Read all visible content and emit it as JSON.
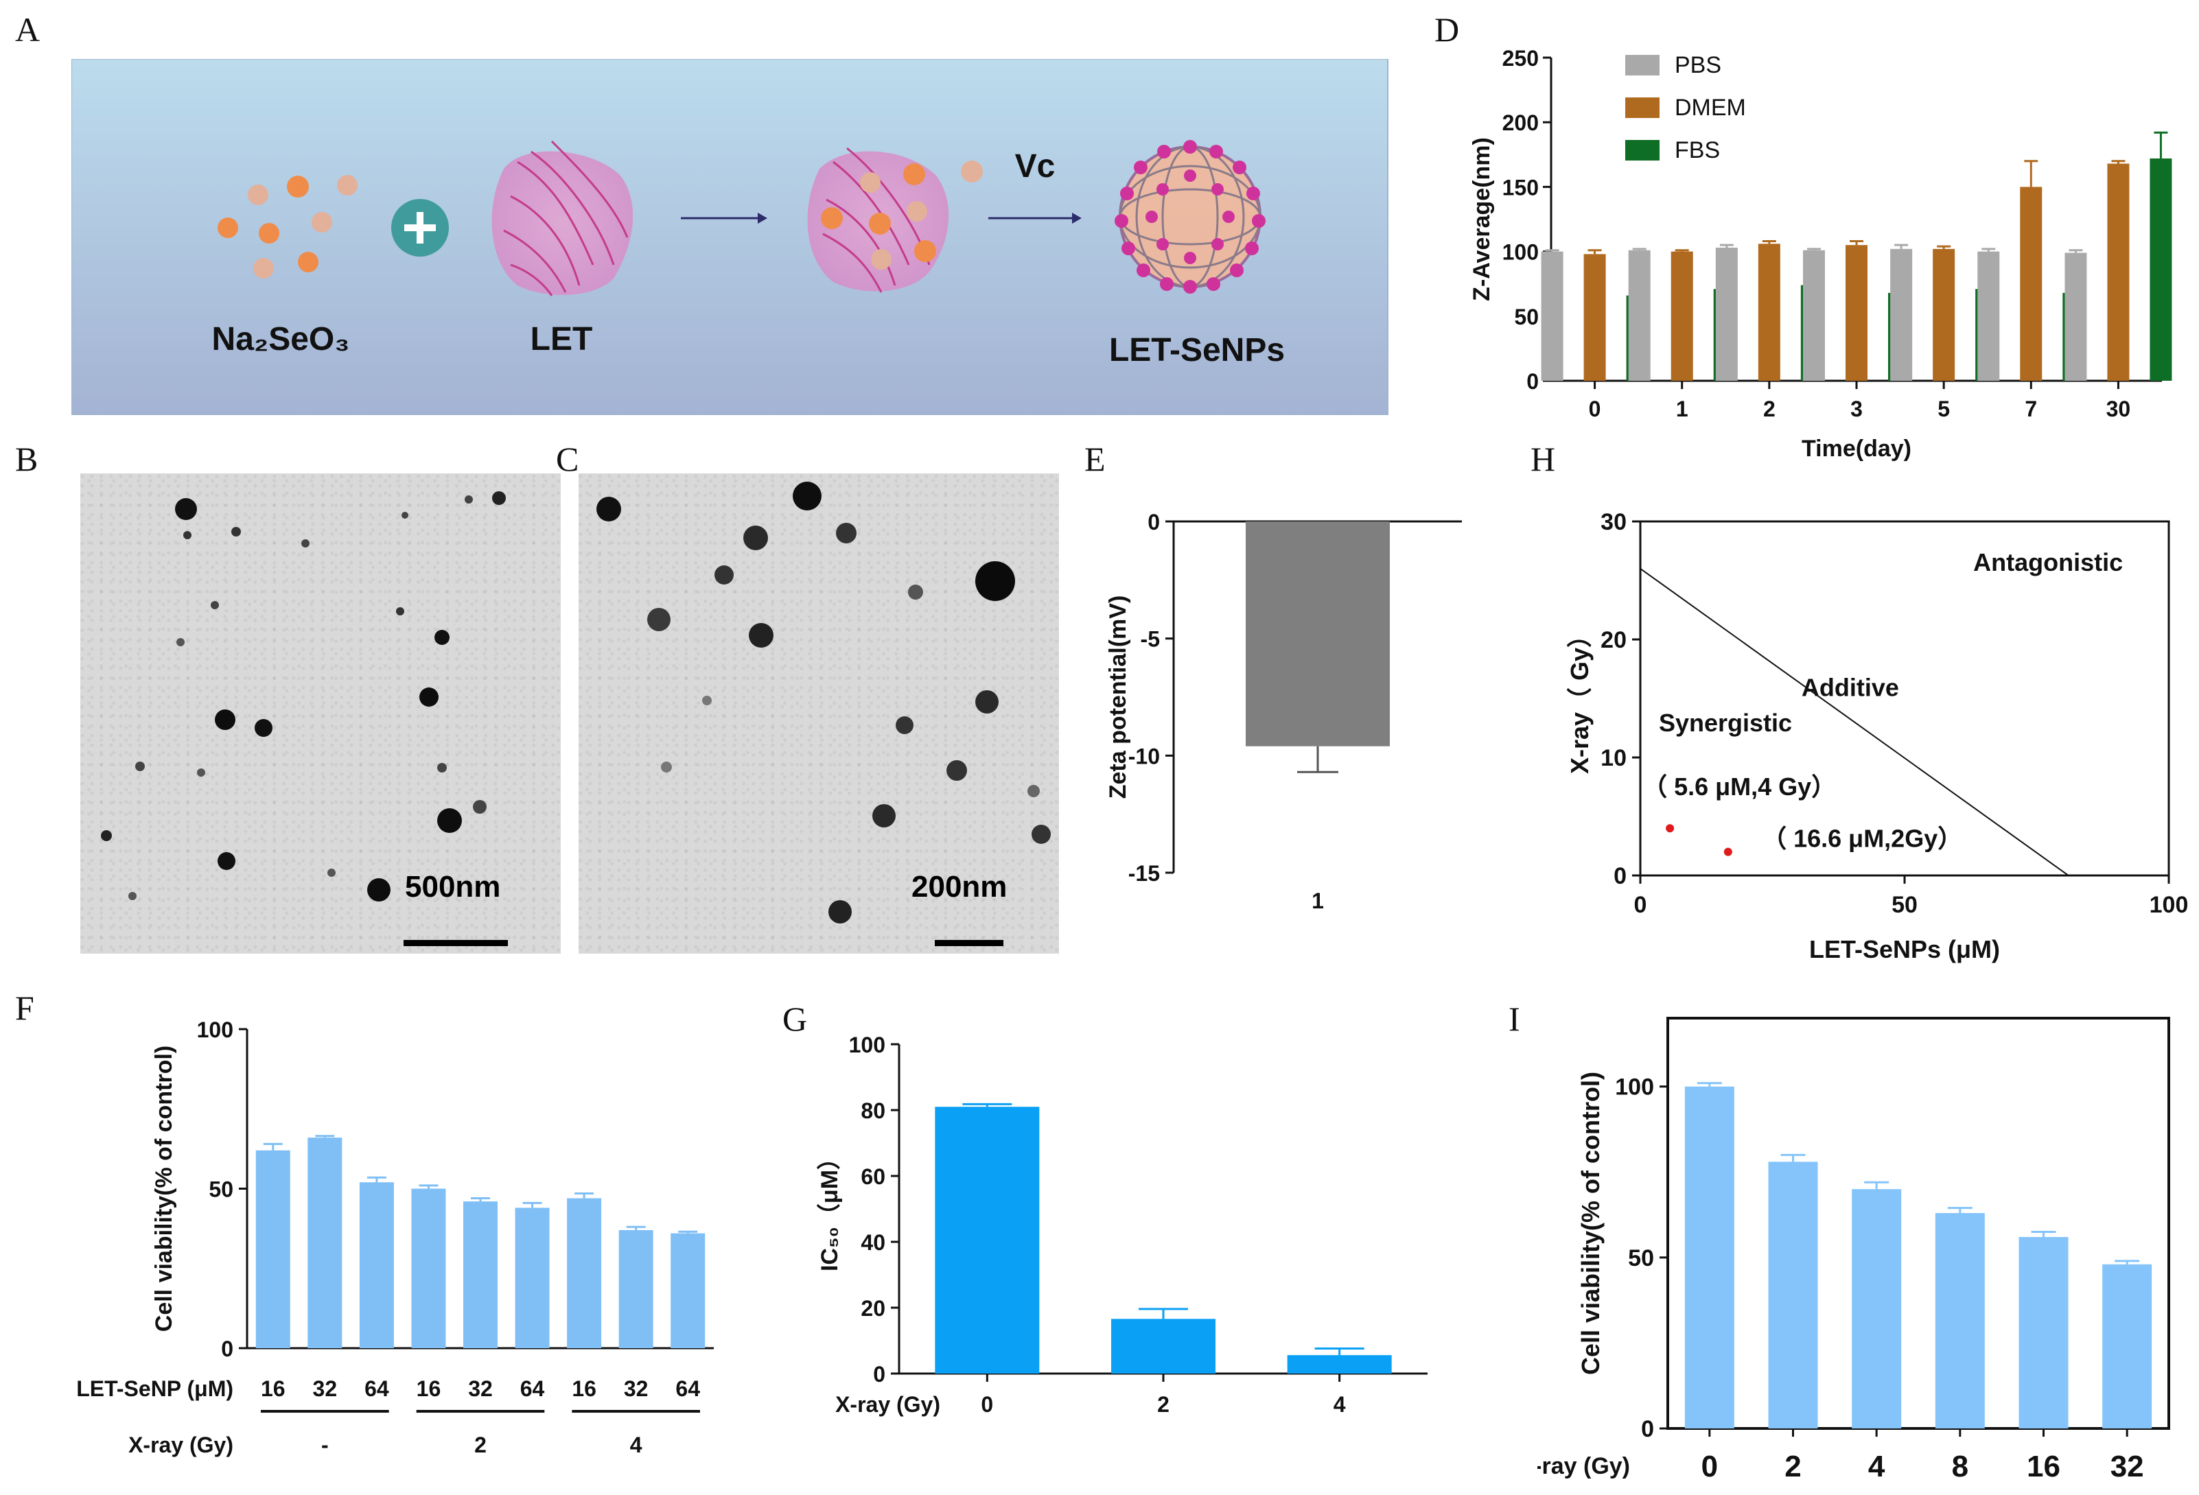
{
  "panels": {
    "A": {
      "letter": "A",
      "reagent_1": "Na₂SeO₃",
      "reagent_2": "LET",
      "product": "LET-SeNPs",
      "arrow_label": "Vc",
      "colors": {
        "background_top": "#b9d8ea",
        "background_bottom": "#a6b4d4",
        "plus": "#3f9b9c",
        "dot": "#f08c4a"
      }
    },
    "B": {
      "letter": "B",
      "scale_label": "500nm"
    },
    "C": {
      "letter": "C",
      "scale_label": "200nm"
    },
    "D": {
      "letter": "D"
    },
    "E": {
      "letter": "E"
    },
    "F": {
      "letter": "F"
    },
    "G": {
      "letter": "G"
    },
    "H": {
      "letter": "H"
    },
    "I": {
      "letter": "I"
    }
  },
  "chart_data": [
    {
      "panel": "D",
      "type": "bar",
      "ylabel": "Z-Average(nm)",
      "xlabel": "Time(day)",
      "ylim": [
        0,
        250
      ],
      "yticks": [
        0,
        50,
        100,
        150,
        200,
        250
      ],
      "categories": [
        "0",
        "1",
        "2",
        "3",
        "5",
        "7",
        "30"
      ],
      "series": [
        {
          "name": "PBS",
          "color": "#a9a9a9",
          "values": [
            100,
            101,
            103,
            101,
            102,
            100,
            99
          ],
          "errors": [
            1,
            1,
            2,
            1,
            3,
            2,
            2
          ]
        },
        {
          "name": "DMEM",
          "color": "#b06a1f",
          "values": [
            98,
            100,
            106,
            105,
            102,
            150,
            168
          ],
          "errors": [
            3,
            1,
            2,
            3,
            2,
            20,
            2
          ]
        },
        {
          "name": "FBS",
          "color": "#0f6e25",
          "values": [
            66,
            71,
            74,
            68,
            71,
            68,
            172
          ],
          "errors": [
            3,
            3,
            4,
            2,
            3,
            1,
            20
          ]
        }
      ],
      "legend": "top-left"
    },
    {
      "panel": "E",
      "type": "bar",
      "ylabel": "Zeta potential(mV)",
      "categories": [
        "1"
      ],
      "values": [
        -9.6
      ],
      "errors": [
        1.1
      ],
      "ylim": [
        -15,
        0
      ],
      "yticks": [
        0,
        -5,
        -10,
        -15
      ],
      "color": "#7f7f7f"
    },
    {
      "panel": "H",
      "type": "scatter",
      "xlabel": "LET-SeNPs (μM)",
      "ylabel": "X-ray（ Gy）",
      "xlim": [
        0,
        100
      ],
      "ylim": [
        0,
        30
      ],
      "xticks": [
        0,
        50,
        100
      ],
      "yticks": [
        0,
        10,
        20,
        30
      ],
      "line": {
        "x": [
          0,
          81
        ],
        "y": [
          26,
          0
        ]
      },
      "points": [
        {
          "x": 5.6,
          "y": 4,
          "label": "（ 5.6 μM,4 Gy）"
        },
        {
          "x": 16.6,
          "y": 2,
          "label": "（ 16.6 μM,2Gy）"
        }
      ],
      "regions": [
        "Antagonistic",
        "Additive",
        "Synergistic"
      ],
      "point_color": "#e11b1b"
    },
    {
      "panel": "F",
      "type": "bar",
      "ylabel": "Cell viability(% of control)",
      "ylim": [
        0,
        100
      ],
      "yticks": [
        0,
        50,
        100
      ],
      "categories": [
        "16",
        "32",
        "64",
        "16",
        "32",
        "64",
        "16",
        "32",
        "64"
      ],
      "values": [
        62,
        66,
        52,
        50,
        46,
        44,
        47,
        37,
        36
      ],
      "errors": [
        2,
        0.5,
        1.5,
        1,
        1,
        1.5,
        1.5,
        1,
        0.5
      ],
      "row_labels": {
        "drug": "LET-SeNP (μM)",
        "xray": "X-ray (Gy)"
      },
      "groups": [
        "-",
        "2",
        "4"
      ],
      "color": "#7fbff5"
    },
    {
      "panel": "G",
      "type": "bar",
      "ylabel": "IC₅₀（μM）",
      "ylim": [
        0,
        100
      ],
      "yticks": [
        0,
        20,
        40,
        60,
        80,
        100
      ],
      "categories": [
        "0",
        "2",
        "4"
      ],
      "xlabel_prefix": "X-ray (Gy)",
      "values": [
        81,
        16.6,
        5.6
      ],
      "errors": [
        0.8,
        3,
        2
      ],
      "color": "#0aa0f5"
    },
    {
      "panel": "I",
      "type": "bar",
      "ylabel": "Cell viability(% of control)",
      "ylim": [
        0,
        120
      ],
      "yticks": [
        0,
        50,
        100
      ],
      "categories": [
        "0",
        "2",
        "4",
        "8",
        "16",
        "32"
      ],
      "xlabel_prefix": "X-ray (Gy)",
      "values": [
        100,
        78,
        70,
        63,
        56,
        48
      ],
      "errors": [
        1,
        2,
        2,
        1.5,
        1.5,
        1
      ],
      "color": "#84c4fa"
    }
  ]
}
